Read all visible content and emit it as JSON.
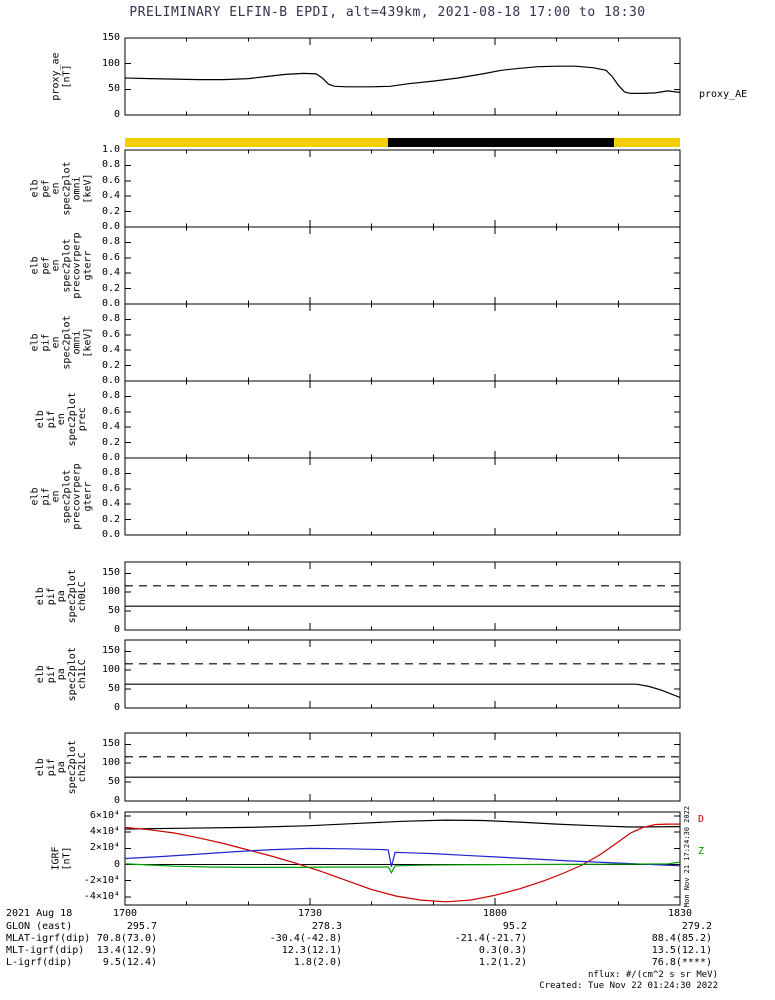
{
  "title": "PRELIMINARY ELFIN-B EPDI, alt=439km, 2021-08-18 17:00 to 18:30",
  "colors": {
    "title_text": "#33334d",
    "yellow_bar": "#f2d000",
    "black_bar": "#000000",
    "series_black": "#000000",
    "series_red": "#cc0000",
    "series_blue": "#2424cc",
    "series_green": "#00a000"
  },
  "right_labels": {
    "proxy_ae": "proxy_AE",
    "igrf_d": "D",
    "igrf_z": "Z"
  },
  "watermark": "Mon Nov 21 17:24:30 2022",
  "footer": {
    "nflux_units": "nflux: #/(cm^2 s sr MeV)",
    "created": "Created: Tue Nov 22 01:24:30 2022"
  },
  "time_axis": {
    "date_label": "2021 Aug 18",
    "tick_labels": [
      "1700",
      "1730",
      "1800",
      "1830"
    ]
  },
  "var_rows": [
    {
      "label": "GLON (east)",
      "values": [
        "295.7",
        "278.3",
        "95.2",
        "279.2"
      ]
    },
    {
      "label": "MLAT-igrf(dip)",
      "values": [
        "70.8(73.0)",
        "-30.4(-42.8)",
        "-21.4(-21.7)",
        "88.4(85.2)"
      ]
    },
    {
      "label": "MLT-igrf(dip)",
      "values": [
        "13.4(12.9)",
        "12.3(12.1)",
        "0.3(0.3)",
        "13.5(12.1)"
      ]
    },
    {
      "label": "L-igrf(dip)",
      "values": [
        "9.5(12.4)",
        "1.8(2.0)",
        "1.2(1.2)",
        "76.8(****)"
      ]
    }
  ],
  "chart_data": {
    "type": "line",
    "x_units": "minutes after 17:00 UT, 2021-08-18",
    "x_range": [
      0,
      90
    ],
    "x_major_ticks": [
      0,
      30,
      60,
      90
    ],
    "x_minor_ticks": [
      10,
      20,
      40,
      50,
      70,
      80
    ],
    "panels": [
      {
        "id": "proxy_ae",
        "label_lines": [
          "proxy_ae",
          "[nT]"
        ],
        "ylim": [
          0,
          150
        ],
        "yticks": [
          {
            "v": 150,
            "label": "150"
          },
          {
            "v": 100,
            "label": "100"
          },
          {
            "v": 50,
            "label": "50"
          },
          {
            "v": 0,
            "label": "0"
          }
        ],
        "series": [
          {
            "name": "proxy_AE",
            "color": "series_black",
            "points": [
              [
                0,
                72
              ],
              [
                4,
                71
              ],
              [
                8,
                70
              ],
              [
                12,
                69
              ],
              [
                16,
                69
              ],
              [
                20,
                71
              ],
              [
                23,
                75
              ],
              [
                26,
                79
              ],
              [
                29,
                81
              ],
              [
                31,
                80
              ],
              [
                32,
                72
              ],
              [
                33,
                60
              ],
              [
                34,
                56
              ],
              [
                36,
                55
              ],
              [
                40,
                55
              ],
              [
                43,
                56
              ],
              [
                46,
                61
              ],
              [
                50,
                66
              ],
              [
                54,
                72
              ],
              [
                58,
                80
              ],
              [
                61,
                87
              ],
              [
                64,
                91
              ],
              [
                67,
                94
              ],
              [
                70,
                95
              ],
              [
                73,
                95
              ],
              [
                76,
                92
              ],
              [
                78,
                87
              ],
              [
                79,
                75
              ],
              [
                80,
                58
              ],
              [
                81,
                45
              ],
              [
                82,
                42
              ],
              [
                84,
                42
              ],
              [
                86,
                43
              ],
              [
                88,
                47
              ],
              [
                90,
                44
              ]
            ]
          }
        ]
      },
      {
        "id": "position_bar",
        "type": "bar-strip",
        "segments": [
          {
            "start": 0.0,
            "end": 0.474,
            "color": "yellow_bar"
          },
          {
            "start": 0.474,
            "end": 0.881,
            "color": "black_bar"
          },
          {
            "start": 0.881,
            "end": 1.0,
            "color": "yellow_bar"
          }
        ]
      },
      {
        "id": "elb_pef_en_spec2plot_omni",
        "label_lines": [
          "elb",
          "pef",
          "en",
          "spec2plot",
          "omni",
          "[keV]"
        ],
        "ylim": [
          0,
          1
        ],
        "yticks": [
          {
            "v": 1.0,
            "label": "1.0"
          },
          {
            "v": 0.8,
            "label": "0.8"
          },
          {
            "v": 0.6,
            "label": "0.6"
          },
          {
            "v": 0.4,
            "label": "0.4"
          },
          {
            "v": 0.2,
            "label": "0.2"
          },
          {
            "v": 0.0,
            "label": "0.0"
          }
        ],
        "series": []
      },
      {
        "id": "elb_pef_en_spec2plot_precovrperp_gterr",
        "label_lines": [
          "elb",
          "pef",
          "en",
          "spec2plot",
          "precovrperp",
          "gterr"
        ],
        "ylim": [
          0,
          1
        ],
        "yticks": [
          {
            "v": 0.8,
            "label": "0.8"
          },
          {
            "v": 0.6,
            "label": "0.6"
          },
          {
            "v": 0.4,
            "label": "0.4"
          },
          {
            "v": 0.2,
            "label": "0.2"
          },
          {
            "v": 0.0,
            "label": "0.0"
          }
        ],
        "series": []
      },
      {
        "id": "elb_pif_en_spec2plot_omni",
        "label_lines": [
          "elb",
          "pif",
          "en",
          "spec2plot",
          "omni",
          "[keV]"
        ],
        "ylim": [
          0,
          1
        ],
        "yticks": [
          {
            "v": 0.8,
            "label": "0.8"
          },
          {
            "v": 0.6,
            "label": "0.6"
          },
          {
            "v": 0.4,
            "label": "0.4"
          },
          {
            "v": 0.2,
            "label": "0.2"
          },
          {
            "v": 0.0,
            "label": "0.0"
          }
        ],
        "series": []
      },
      {
        "id": "elb_pif_en_spec2plot_prec",
        "label_lines": [
          "elb",
          "pif",
          "en",
          "spec2plot",
          "prec"
        ],
        "ylim": [
          0,
          1
        ],
        "yticks": [
          {
            "v": 0.8,
            "label": "0.8"
          },
          {
            "v": 0.6,
            "label": "0.6"
          },
          {
            "v": 0.4,
            "label": "0.4"
          },
          {
            "v": 0.2,
            "label": "0.2"
          },
          {
            "v": 0.0,
            "label": "0.0"
          }
        ],
        "series": []
      },
      {
        "id": "elb_pif_en_spec2plot_precovrperp_gterr",
        "label_lines": [
          "elb",
          "pif",
          "en",
          "spec2plot",
          "precovrperp",
          "gterr"
        ],
        "ylim": [
          0,
          1
        ],
        "yticks": [
          {
            "v": 0.8,
            "label": "0.8"
          },
          {
            "v": 0.6,
            "label": "0.6"
          },
          {
            "v": 0.4,
            "label": "0.4"
          },
          {
            "v": 0.2,
            "label": "0.2"
          },
          {
            "v": 0.0,
            "label": "0.0"
          }
        ],
        "series": []
      },
      {
        "id": "elb_pif_pa_spec2plot_ch0LC",
        "label_lines": [
          "elb",
          "pif",
          "pa",
          "spec2plot",
          "ch0LC"
        ],
        "ylim": [
          0,
          180
        ],
        "yticks": [
          {
            "v": 150,
            "label": "150"
          },
          {
            "v": 100,
            "label": "100"
          },
          {
            "v": 50,
            "label": "50"
          },
          {
            "v": 0,
            "label": "0"
          }
        ],
        "series": [
          {
            "name": "anti-loss-cone",
            "color": "series_black",
            "style": "dashed",
            "points": [
              [
                0,
                117
              ],
              [
                90,
                117
              ]
            ]
          },
          {
            "name": "loss-cone",
            "color": "series_black",
            "points": [
              [
                0,
                63
              ],
              [
                90,
                63
              ]
            ]
          }
        ]
      },
      {
        "id": "elb_pif_pa_spec2plot_ch1LC",
        "label_lines": [
          "elb",
          "pif",
          "pa",
          "spec2plot",
          "ch1LC"
        ],
        "ylim": [
          0,
          180
        ],
        "yticks": [
          {
            "v": 150,
            "label": "150"
          },
          {
            "v": 100,
            "label": "100"
          },
          {
            "v": 50,
            "label": "50"
          },
          {
            "v": 0,
            "label": "0"
          }
        ],
        "series": [
          {
            "name": "anti-loss-cone",
            "color": "series_black",
            "style": "dashed",
            "points": [
              [
                0,
                117
              ],
              [
                90,
                117
              ]
            ]
          },
          {
            "name": "loss-cone",
            "color": "series_black",
            "points": [
              [
                0,
                63
              ],
              [
                83,
                63
              ],
              [
                85,
                57
              ],
              [
                87,
                47
              ],
              [
                90,
                28
              ]
            ]
          }
        ]
      },
      {
        "id": "elb_pif_pa_spec2plot_ch2LC",
        "label_lines": [
          "elb",
          "pif",
          "pa",
          "spec2plot",
          "ch2LC"
        ],
        "ylim": [
          0,
          180
        ],
        "yticks": [
          {
            "v": 150,
            "label": "150"
          },
          {
            "v": 100,
            "label": "100"
          },
          {
            "v": 50,
            "label": "50"
          },
          {
            "v": 0,
            "label": "0"
          }
        ],
        "series": [
          {
            "name": "anti-loss-cone",
            "color": "series_black",
            "style": "dashed",
            "points": [
              [
                0,
                117
              ],
              [
                90,
                117
              ]
            ]
          },
          {
            "name": "loss-cone",
            "color": "series_black",
            "points": [
              [
                0,
                63
              ],
              [
                90,
                63
              ]
            ]
          }
        ]
      },
      {
        "id": "igrf",
        "label_lines": [
          "IGRF",
          "[nT]"
        ],
        "ylim": [
          -50000,
          65000
        ],
        "zero_line": true,
        "yticks": [
          {
            "v": 60000,
            "label": "6×10⁴"
          },
          {
            "v": 40000,
            "label": "4×10⁴"
          },
          {
            "v": 20000,
            "label": "2×10⁴"
          },
          {
            "v": 0,
            "label": "0"
          },
          {
            "v": -20000,
            "label": "-2×10⁴"
          },
          {
            "v": -40000,
            "label": "-4×10⁴"
          }
        ],
        "series": [
          {
            "name": "igrf-B",
            "color": "series_black",
            "points": [
              [
                0,
                44000
              ],
              [
                10,
                45000
              ],
              [
                20,
                46000
              ],
              [
                30,
                48000
              ],
              [
                38,
                51000
              ],
              [
                45,
                53500
              ],
              [
                52,
                55000
              ],
              [
                58,
                54500
              ],
              [
                64,
                52500
              ],
              [
                70,
                50000
              ],
              [
                76,
                48000
              ],
              [
                82,
                46500
              ],
              [
                90,
                47000
              ]
            ]
          },
          {
            "name": "igrf-D",
            "color": "series_red",
            "points": [
              [
                0,
                46000
              ],
              [
                4,
                43000
              ],
              [
                8,
                39000
              ],
              [
                12,
                33000
              ],
              [
                16,
                26000
              ],
              [
                20,
                18000
              ],
              [
                24,
                10000
              ],
              [
                28,
                1000
              ],
              [
                32,
                -9000
              ],
              [
                36,
                -20000
              ],
              [
                40,
                -31000
              ],
              [
                44,
                -39000
              ],
              [
                48,
                -44000
              ],
              [
                52,
                -46000
              ],
              [
                56,
                -44000
              ],
              [
                60,
                -38000
              ],
              [
                64,
                -30000
              ],
              [
                68,
                -20000
              ],
              [
                71,
                -11000
              ],
              [
                74,
                -1000
              ],
              [
                77,
                12000
              ],
              [
                80,
                28000
              ],
              [
                82,
                39000
              ],
              [
                84,
                46000
              ],
              [
                86,
                49500
              ],
              [
                88,
                50000
              ],
              [
                90,
                50000
              ]
            ]
          },
          {
            "name": "igrf-H",
            "color": "series_blue",
            "points": [
              [
                0,
                7500
              ],
              [
                6,
                10000
              ],
              [
                12,
                13000
              ],
              [
                18,
                16000
              ],
              [
                24,
                18500
              ],
              [
                30,
                20000
              ],
              [
                36,
                19500
              ],
              [
                42,
                18500
              ],
              [
                42.7,
                18000
              ],
              [
                43.2,
                -2500
              ],
              [
                43.8,
                15000
              ],
              [
                46,
                14500
              ],
              [
                50,
                13500
              ],
              [
                55,
                11500
              ],
              [
                60,
                9500
              ],
              [
                66,
                7000
              ],
              [
                72,
                4500
              ],
              [
                78,
                2500
              ],
              [
                84,
                500
              ],
              [
                90,
                -1500
              ]
            ]
          },
          {
            "name": "igrf-Z",
            "color": "series_green",
            "points": [
              [
                0,
                1000
              ],
              [
                4,
                -500
              ],
              [
                8,
                -2000
              ],
              [
                14,
                -3000
              ],
              [
                20,
                -3500
              ],
              [
                28,
                -3500
              ],
              [
                34,
                -3000
              ],
              [
                40,
                -3000
              ],
              [
                42.7,
                -3000
              ],
              [
                43.2,
                -10000
              ],
              [
                43.8,
                -1500
              ],
              [
                48,
                -800
              ],
              [
                54,
                -300
              ],
              [
                60,
                0
              ],
              [
                70,
                200
              ],
              [
                80,
                500
              ],
              [
                88,
                1000
              ],
              [
                90,
                3000
              ]
            ]
          }
        ]
      }
    ]
  }
}
